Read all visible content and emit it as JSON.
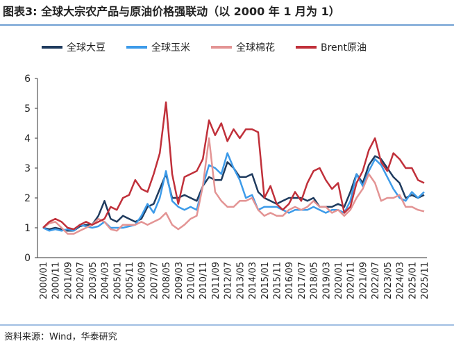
{
  "chart_data": {
    "type": "line",
    "title": "图表3:  全球大宗农产品与原油价格强联动（以 2000 年 1 月为 1）",
    "source": "资料来源：Wind，华泰研究",
    "categories": [
      "2000/01",
      null,
      "2000/11",
      null,
      "2001/09",
      null,
      "2002/07",
      null,
      "2003/05",
      null,
      "2004/03",
      null,
      "2005/01",
      null,
      "2005/11",
      null,
      "2006/09",
      null,
      "2007/07",
      null,
      "2008/05",
      null,
      "2009/03",
      null,
      "2010/01",
      null,
      "2010/11",
      null,
      "2011/09",
      null,
      "2012/07",
      null,
      "2013/05",
      null,
      "2014/03",
      null,
      "2015/01",
      null,
      "2015/11",
      null,
      "2016/09",
      null,
      "2017/07",
      null,
      "2018/05",
      null,
      "2019/03",
      null,
      "2020/01",
      null,
      "2020/11",
      null,
      "2021/09",
      null,
      "2022/07",
      null,
      "2023/05",
      null,
      "2024/03",
      null,
      "2025/01",
      null,
      "2025/11"
    ],
    "series": [
      {
        "name": "全球大豆",
        "color": "#1f3b5e",
        "values": [
          1,
          0.95,
          1.0,
          0.95,
          0.9,
          0.9,
          1.05,
          1.1,
          1.1,
          1.4,
          1.9,
          1.3,
          1.2,
          1.4,
          1.3,
          1.2,
          1.3,
          1.7,
          1.8,
          2.3,
          2.8,
          2.0,
          2.0,
          2.1,
          2.0,
          1.9,
          2.4,
          2.7,
          2.6,
          2.6,
          3.2,
          3.0,
          2.7,
          2.7,
          2.8,
          2.2,
          2.0,
          1.9,
          1.8,
          1.9,
          2.0,
          2.0,
          2.0,
          1.9,
          2.0,
          1.7,
          1.7,
          1.7,
          1.8,
          1.7,
          2.2,
          2.8,
          2.5,
          3.1,
          3.4,
          3.3,
          3.0,
          2.7,
          2.5,
          2.0,
          2.1,
          2.0,
          2.1
        ]
      },
      {
        "name": "全球玉米",
        "color": "#3d9be9",
        "values": [
          1,
          0.9,
          0.95,
          0.9,
          0.95,
          0.9,
          1.1,
          1.05,
          1.0,
          1.05,
          1.2,
          1.0,
          1.0,
          1.0,
          1.05,
          1.1,
          1.4,
          1.8,
          1.5,
          2.0,
          2.9,
          1.9,
          1.7,
          1.6,
          1.7,
          1.6,
          2.4,
          3.1,
          3.0,
          2.8,
          3.5,
          3.0,
          2.6,
          2.0,
          2.1,
          1.6,
          1.7,
          1.7,
          1.7,
          1.6,
          1.5,
          1.6,
          1.6,
          1.6,
          1.7,
          1.6,
          1.5,
          1.6,
          1.6,
          1.5,
          1.9,
          2.8,
          2.4,
          2.9,
          3.3,
          3.1,
          2.7,
          2.3,
          2.0,
          1.9,
          2.2,
          2.0,
          2.2
        ]
      },
      {
        "name": "全球棉花",
        "color": "#e39494",
        "values": [
          1,
          1.15,
          1.2,
          1.0,
          0.8,
          0.8,
          0.9,
          1.0,
          1.1,
          1.3,
          1.2,
          0.95,
          0.9,
          1.1,
          1.1,
          1.1,
          1.2,
          1.1,
          1.2,
          1.3,
          1.5,
          1.1,
          0.95,
          1.1,
          1.3,
          1.4,
          2.4,
          4.0,
          2.2,
          1.9,
          1.7,
          1.7,
          1.9,
          1.9,
          2.0,
          1.6,
          1.4,
          1.5,
          1.4,
          1.4,
          1.6,
          1.7,
          1.6,
          1.7,
          1.9,
          1.7,
          1.7,
          1.5,
          1.6,
          1.4,
          1.6,
          2.0,
          2.3,
          2.8,
          2.5,
          1.9,
          2.0,
          2.0,
          2.1,
          1.7,
          1.7,
          1.6,
          1.55
        ]
      },
      {
        "name": "Brent原油",
        "color": "#c0303a",
        "values": [
          1,
          1.2,
          1.3,
          1.2,
          1.0,
          0.95,
          1.1,
          1.2,
          1.1,
          1.2,
          1.3,
          1.7,
          1.6,
          2.0,
          2.1,
          2.6,
          2.3,
          2.2,
          2.8,
          3.5,
          5.2,
          2.8,
          1.8,
          2.7,
          2.8,
          2.9,
          3.3,
          4.6,
          4.1,
          4.5,
          3.9,
          4.3,
          4.0,
          4.3,
          4.3,
          4.2,
          2.0,
          2.4,
          1.8,
          1.6,
          1.8,
          2.2,
          1.9,
          2.5,
          2.9,
          3.0,
          2.6,
          2.3,
          2.5,
          1.5,
          1.7,
          2.5,
          2.9,
          3.6,
          4.0,
          3.2,
          2.9,
          3.5,
          3.3,
          3.0,
          3.0,
          2.6,
          2.5
        ]
      }
    ],
    "ylim": [
      0,
      6
    ],
    "yticks": [
      0,
      1,
      2,
      3,
      4,
      5,
      6
    ],
    "grid": false,
    "legend": "top"
  }
}
